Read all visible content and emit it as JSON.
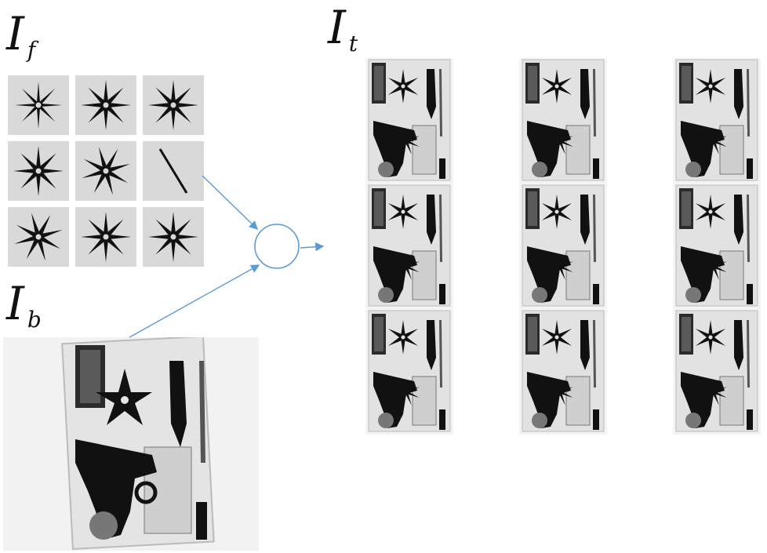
{
  "labels": {
    "foreground": {
      "main": "I",
      "sub": "f"
    },
    "target": {
      "main": "I",
      "sub": "t"
    },
    "background": {
      "main": "I",
      "sub": "b"
    }
  },
  "colors": {
    "arrow": "#5b9bd5",
    "tile_bg": "#d9d9d9",
    "object": "#111111"
  },
  "foreground_tiles": [
    {
      "icon": "shuriken-narrow-icon"
    },
    {
      "icon": "shuriken-icon"
    },
    {
      "icon": "shuriken-icon"
    },
    {
      "icon": "shuriken-icon"
    },
    {
      "icon": "shuriken-rotated-icon"
    },
    {
      "icon": "needle-icon"
    },
    {
      "icon": "shuriken-rotated-icon"
    },
    {
      "icon": "shuriken-icon"
    },
    {
      "icon": "shuriken-icon"
    }
  ],
  "composition_operator": "circle-operator-icon",
  "target_grid": {
    "rows": 3,
    "cols": 3
  }
}
